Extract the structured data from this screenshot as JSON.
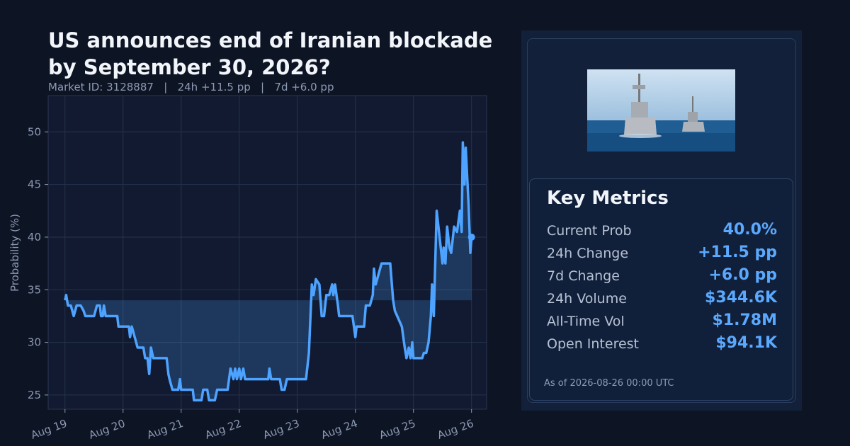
{
  "chart_data": {
    "type": "line",
    "title_lines": [
      "US announces end of Iranian blockade",
      "by September 30, 2026?"
    ],
    "subtitle": "Market ID: 3128887   |   24h +11.5 pp   |   7d +6.0 pp",
    "y_label": "Probability (%)",
    "x": [
      0.0,
      0.02,
      0.05,
      0.1,
      0.15,
      0.2,
      0.27,
      0.32,
      0.35,
      0.5,
      0.55,
      0.6,
      0.62,
      0.65,
      0.67,
      0.7,
      0.9,
      0.92,
      1.1,
      1.12,
      1.15,
      1.2,
      1.25,
      1.35,
      1.38,
      1.42,
      1.45,
      1.48,
      1.52,
      1.75,
      1.78,
      1.8,
      1.85,
      1.95,
      1.98,
      2.0,
      2.2,
      2.22,
      2.35,
      2.38,
      2.45,
      2.48,
      2.58,
      2.62,
      2.8,
      2.85,
      2.9,
      2.93,
      2.96,
      3.0,
      3.03,
      3.07,
      3.1,
      3.5,
      3.52,
      3.55,
      3.7,
      3.73,
      3.78,
      3.82,
      4.15,
      4.2,
      4.25,
      4.28,
      4.32,
      4.38,
      4.42,
      4.46,
      4.5,
      4.55,
      4.6,
      4.62,
      4.65,
      4.7,
      4.72,
      4.95,
      5.0,
      5.02,
      5.15,
      5.18,
      5.25,
      5.3,
      5.32,
      5.35,
      5.45,
      5.6,
      5.65,
      5.68,
      5.8,
      5.85,
      5.88,
      5.92,
      5.95,
      5.98,
      6.0,
      6.15,
      6.18,
      6.22,
      6.26,
      6.3,
      6.32,
      6.35,
      6.4,
      6.45,
      6.5,
      6.52,
      6.55,
      6.58,
      6.62,
      6.65,
      6.7,
      6.75,
      6.8,
      6.83,
      6.85,
      6.88,
      6.9,
      6.95,
      6.98,
      7.0
    ],
    "series": [
      {
        "name": "Probability",
        "color": "#4da3ff",
        "values": [
          34,
          34.5,
          33.5,
          33.5,
          32.5,
          33.5,
          33.5,
          33,
          32.5,
          32.5,
          33.5,
          33.5,
          32.5,
          32.5,
          33.5,
          32.5,
          32.5,
          31.5,
          31.5,
          30.5,
          31.5,
          30.5,
          29.5,
          29.5,
          28.5,
          28.5,
          27,
          29.5,
          28.5,
          28.5,
          27,
          26.5,
          25.5,
          25.5,
          26.5,
          25.5,
          25.5,
          24.5,
          24.5,
          25.5,
          25.5,
          24.5,
          24.5,
          25.5,
          25.5,
          27.5,
          26.5,
          27.5,
          26.5,
          27.5,
          26.5,
          27.5,
          26.5,
          26.5,
          27.5,
          26.5,
          26.5,
          25.5,
          25.5,
          26.5,
          26.5,
          29,
          35.5,
          34.5,
          36,
          35.5,
          32.5,
          32.5,
          34.5,
          34.5,
          35.5,
          34.5,
          35.5,
          33.5,
          32.5,
          32.5,
          30.5,
          31.5,
          31.5,
          33.5,
          33.5,
          34.5,
          37,
          35.5,
          37.5,
          37.5,
          34,
          33,
          31.5,
          29.5,
          28.5,
          29.5,
          28.5,
          30,
          28.5,
          28.5,
          29,
          29,
          30,
          32.5,
          35.5,
          32.5,
          42.5,
          40,
          37.5,
          39,
          37.5,
          41,
          39,
          38.5,
          41,
          40.5,
          42.5,
          40.5,
          49,
          45,
          48.5,
          43,
          38.5,
          40
        ]
      }
    ],
    "fill_baseline": 34,
    "xlim": [
      -0.29,
      7.26
    ],
    "xticks": [
      {
        "value": 0,
        "label": "Aug 19"
      },
      {
        "value": 1,
        "label": "Aug 20"
      },
      {
        "value": 2,
        "label": "Aug 21"
      },
      {
        "value": 3,
        "label": "Aug 22"
      },
      {
        "value": 4,
        "label": "Aug 23"
      },
      {
        "value": 5,
        "label": "Aug 24"
      },
      {
        "value": 6,
        "label": "Aug 25"
      },
      {
        "value": 7,
        "label": "Aug 26"
      }
    ],
    "ylim": [
      23.65,
      53.45
    ],
    "yticks": [
      25,
      30,
      35,
      40,
      45,
      50
    ],
    "grid": true
  },
  "panel": {
    "heading": "Key Metrics",
    "metrics": [
      {
        "label": "Current Prob",
        "value": "40.0%"
      },
      {
        "label": "24h Change",
        "value": "+11.5 pp"
      },
      {
        "label": "7d Change",
        "value": "+6.0 pp"
      },
      {
        "label": "24h Volume",
        "value": "$344.6K"
      },
      {
        "label": "All-Time Vol",
        "value": "$1.78M"
      },
      {
        "label": "Open Interest",
        "value": "$94.1K"
      }
    ],
    "as_of": "As of 2026-08-26 00:00 UTC"
  }
}
